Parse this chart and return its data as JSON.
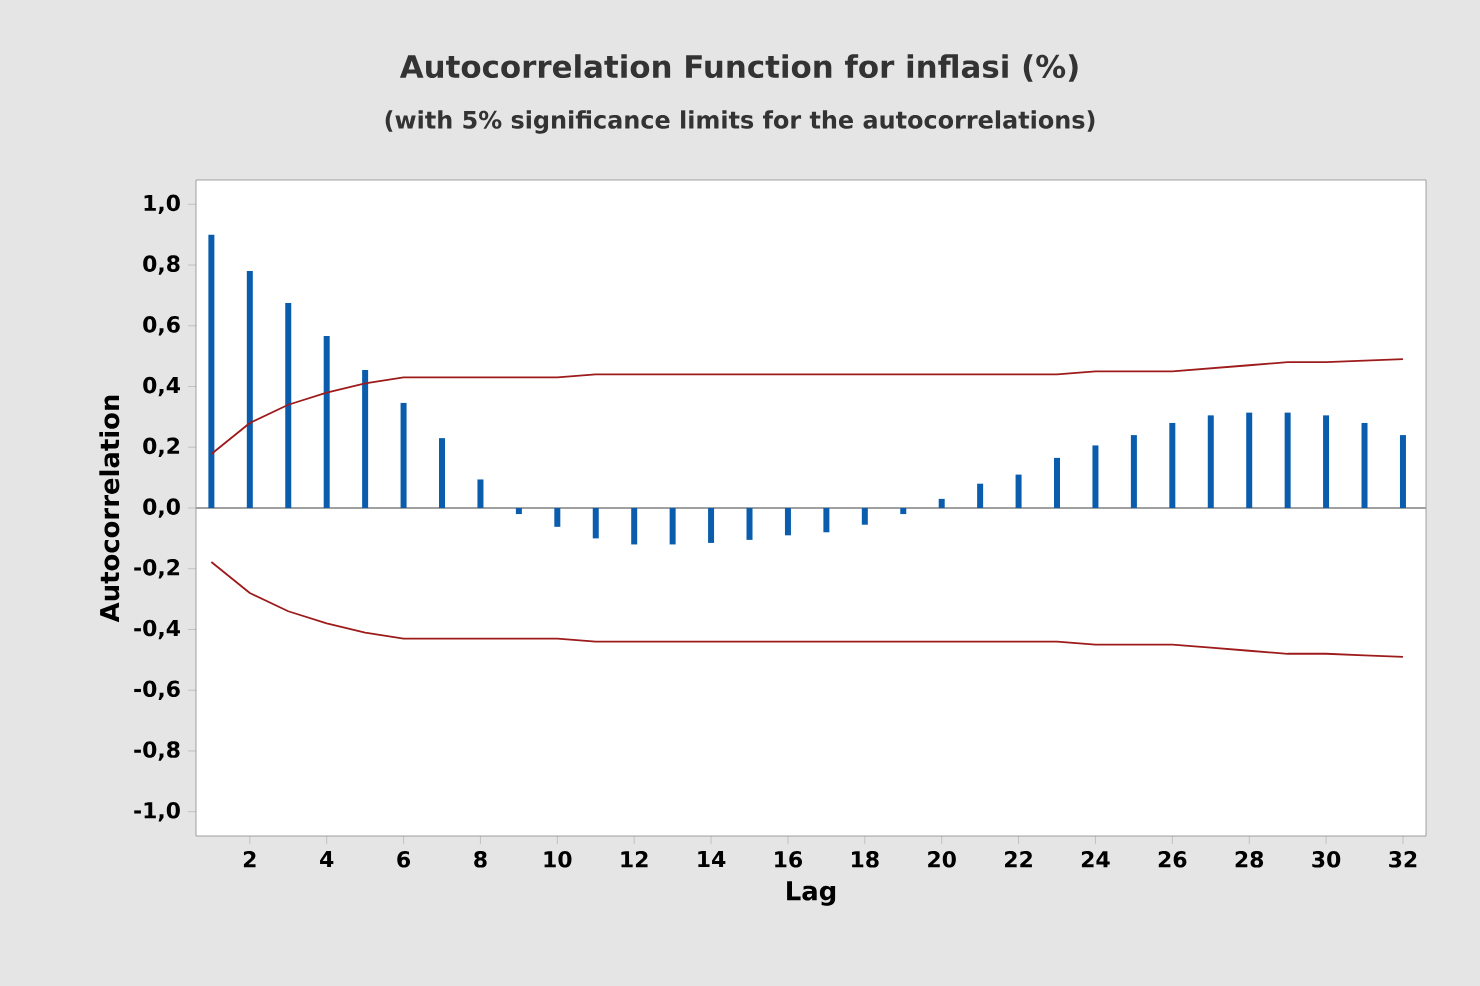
{
  "chart_data": {
    "type": "bar",
    "title": "Autocorrelation Function for inflasi (%)",
    "subtitle": "(with 5% significance limits for the autocorrelations)",
    "xlabel": "Lag",
    "ylabel": "Autocorrelation",
    "x": [
      1,
      2,
      3,
      4,
      5,
      6,
      7,
      8,
      9,
      10,
      11,
      12,
      13,
      14,
      15,
      16,
      17,
      18,
      19,
      20,
      21,
      22,
      23,
      24,
      25,
      26,
      27,
      28,
      29,
      30,
      31,
      32
    ],
    "series": [
      {
        "color": "#0a5cad",
        "values": [
          0.9,
          0.78,
          0.675,
          0.566,
          0.454,
          0.346,
          0.23,
          0.094,
          -0.02,
          -0.062,
          -0.1,
          -0.12,
          -0.12,
          -0.115,
          -0.105,
          -0.09,
          -0.08,
          -0.055,
          -0.02,
          0.03,
          0.08,
          0.11,
          0.165,
          0.206,
          0.24,
          0.28,
          0.305,
          0.314,
          0.314,
          0.305,
          0.28,
          0.24
        ]
      },
      {
        "type": "line",
        "color": "#9e1b1b",
        "values": [
          0.178,
          0.28,
          0.34,
          0.38,
          0.41,
          0.43,
          0.43,
          0.43,
          0.43,
          0.43,
          0.44,
          0.44,
          0.44,
          0.44,
          0.44,
          0.44,
          0.44,
          0.44,
          0.44,
          0.44,
          0.44,
          0.44,
          0.44,
          0.45,
          0.45,
          0.45,
          0.46,
          0.47,
          0.48,
          0.48,
          0.485,
          0.49
        ]
      },
      {
        "type": "line",
        "color": "#9e1b1b",
        "values": [
          -0.178,
          -0.28,
          -0.34,
          -0.38,
          -0.41,
          -0.43,
          -0.43,
          -0.43,
          -0.43,
          -0.43,
          -0.44,
          -0.44,
          -0.44,
          -0.44,
          -0.44,
          -0.44,
          -0.44,
          -0.44,
          -0.44,
          -0.44,
          -0.44,
          -0.44,
          -0.44,
          -0.45,
          -0.45,
          -0.45,
          -0.46,
          -0.47,
          -0.48,
          -0.48,
          -0.485,
          -0.49
        ]
      }
    ],
    "ref_lines": [
      {
        "axis": "y",
        "value": 0,
        "color": "#a0a0a0"
      }
    ],
    "xlim": [
      0.6,
      32.6
    ],
    "ylim": [
      -1.08,
      1.08
    ],
    "xticks": [
      2,
      4,
      6,
      8,
      10,
      12,
      14,
      16,
      18,
      20,
      22,
      24,
      26,
      28,
      30,
      32
    ],
    "yticks": [
      {
        "value": -1.0,
        "label": "-1,0"
      },
      {
        "value": -0.8,
        "label": "-0,8"
      },
      {
        "value": -0.6,
        "label": "-0,6"
      },
      {
        "value": -0.4,
        "label": "-0,4"
      },
      {
        "value": -0.2,
        "label": "-0,2"
      },
      {
        "value": 0,
        "label": "0,0"
      },
      {
        "value": 0.2,
        "label": "0,2"
      },
      {
        "value": 0.4,
        "label": "0,4"
      },
      {
        "value": 0.6,
        "label": "0,6"
      },
      {
        "value": 0.8,
        "label": "0,8"
      },
      {
        "value": 1.0,
        "label": "1,0"
      }
    ],
    "marker": "none"
  }
}
